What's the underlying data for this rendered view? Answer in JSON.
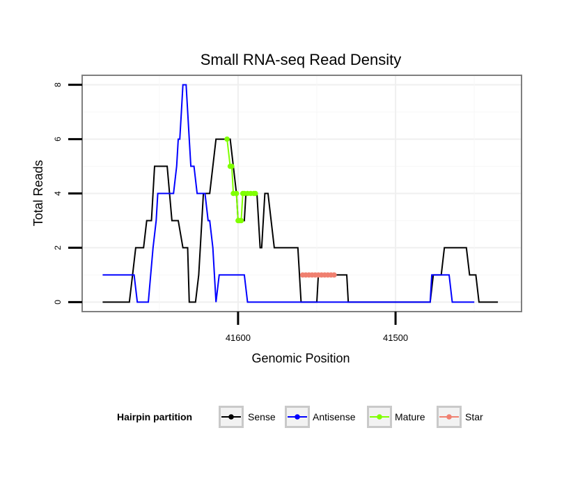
{
  "chart_data": {
    "type": "line",
    "title": "Small RNA-seq Read Density",
    "xlabel": "Genomic Position",
    "ylabel": "Total Reads",
    "xlim": [
      41699,
      41420
    ],
    "ylim": [
      -0.35,
      8.35
    ],
    "x_ticks": [
      41600,
      41500
    ],
    "x_tick_labels": [
      "41600",
      "41500"
    ],
    "y_ticks": [
      0,
      2,
      4,
      6,
      8
    ],
    "y_tick_labels": [
      "0",
      "2",
      "4",
      "6",
      "8"
    ],
    "grid": true,
    "legend": {
      "title": "Hairpin partition",
      "position": "bottom",
      "entries": [
        "Sense",
        "Antisense",
        "Mature",
        "Star"
      ]
    },
    "series": [
      {
        "name": "Sense",
        "color": "#000000",
        "marker": "none",
        "points": [
          [
            41686,
            0
          ],
          [
            41669,
            0
          ],
          [
            41667,
            1
          ],
          [
            41665,
            2
          ],
          [
            41660,
            2
          ],
          [
            41658,
            3
          ],
          [
            41655,
            3
          ],
          [
            41653,
            5
          ],
          [
            41645,
            5
          ],
          [
            41642,
            3
          ],
          [
            41638,
            3
          ],
          [
            41635,
            2
          ],
          [
            41632,
            2
          ],
          [
            41631,
            0
          ],
          [
            41627,
            0
          ],
          [
            41625,
            1
          ],
          [
            41623,
            3
          ],
          [
            41622,
            4
          ],
          [
            41618,
            4
          ],
          [
            41614,
            6
          ],
          [
            41605,
            6
          ],
          [
            41603,
            5
          ],
          [
            41601,
            4
          ],
          [
            41600,
            3
          ],
          [
            41596,
            3
          ],
          [
            41595,
            4
          ],
          [
            41588,
            4
          ],
          [
            41586,
            2
          ],
          [
            41585,
            2
          ],
          [
            41583,
            4
          ],
          [
            41581,
            4
          ],
          [
            41579,
            3
          ],
          [
            41577,
            2
          ],
          [
            41562,
            2
          ],
          [
            41560,
            0
          ],
          [
            41550,
            0
          ],
          [
            41549,
            1
          ],
          [
            41531,
            1
          ],
          [
            41530,
            0
          ],
          [
            41478,
            0
          ],
          [
            41476,
            1
          ],
          [
            41471,
            1
          ],
          [
            41469,
            2
          ],
          [
            41455,
            2
          ],
          [
            41453,
            1
          ],
          [
            41449,
            1
          ],
          [
            41447,
            0
          ],
          [
            41435,
            0
          ]
        ]
      },
      {
        "name": "Antisense",
        "color": "#0000ff",
        "marker": "none",
        "points": [
          [
            41686,
            1
          ],
          [
            41666,
            1
          ],
          [
            41664,
            0
          ],
          [
            41657,
            0
          ],
          [
            41654,
            2
          ],
          [
            41652,
            3
          ],
          [
            41651,
            4
          ],
          [
            41645,
            4
          ],
          [
            41643,
            4
          ],
          [
            41641,
            4
          ],
          [
            41639,
            5
          ],
          [
            41638,
            6
          ],
          [
            41637,
            6
          ],
          [
            41636,
            7
          ],
          [
            41635,
            8
          ],
          [
            41633,
            8
          ],
          [
            41631,
            6
          ],
          [
            41630,
            5
          ],
          [
            41628,
            5
          ],
          [
            41626,
            4
          ],
          [
            41621,
            4
          ],
          [
            41619,
            3
          ],
          [
            41618,
            3
          ],
          [
            41616,
            2
          ],
          [
            41614,
            0
          ],
          [
            41612,
            1
          ],
          [
            41596,
            1
          ],
          [
            41594,
            0
          ],
          [
            41478,
            0
          ],
          [
            41477,
            1
          ],
          [
            41466,
            1
          ],
          [
            41464,
            0
          ],
          [
            41450,
            0
          ]
        ]
      },
      {
        "name": "Mature",
        "color": "#7fff00",
        "marker": "point",
        "points": [
          [
            41607,
            6
          ],
          [
            41605,
            5
          ],
          [
            41604,
            5
          ],
          [
            41603,
            4
          ],
          [
            41601,
            4
          ],
          [
            41600,
            3
          ],
          [
            41599,
            3
          ],
          [
            41598,
            3
          ],
          [
            41597,
            4
          ],
          [
            41596,
            4
          ],
          [
            41594,
            4
          ],
          [
            41592,
            4
          ],
          [
            41590,
            4
          ],
          [
            41589,
            4
          ]
        ]
      },
      {
        "name": "Star",
        "color": "#f08070",
        "marker": "point",
        "points": [
          [
            41559,
            1
          ],
          [
            41557,
            1
          ],
          [
            41555,
            1
          ],
          [
            41553,
            1
          ],
          [
            41551,
            1
          ],
          [
            41549,
            1
          ],
          [
            41547,
            1
          ],
          [
            41545,
            1
          ],
          [
            41543,
            1
          ],
          [
            41541,
            1
          ],
          [
            41539,
            1
          ]
        ]
      }
    ]
  }
}
